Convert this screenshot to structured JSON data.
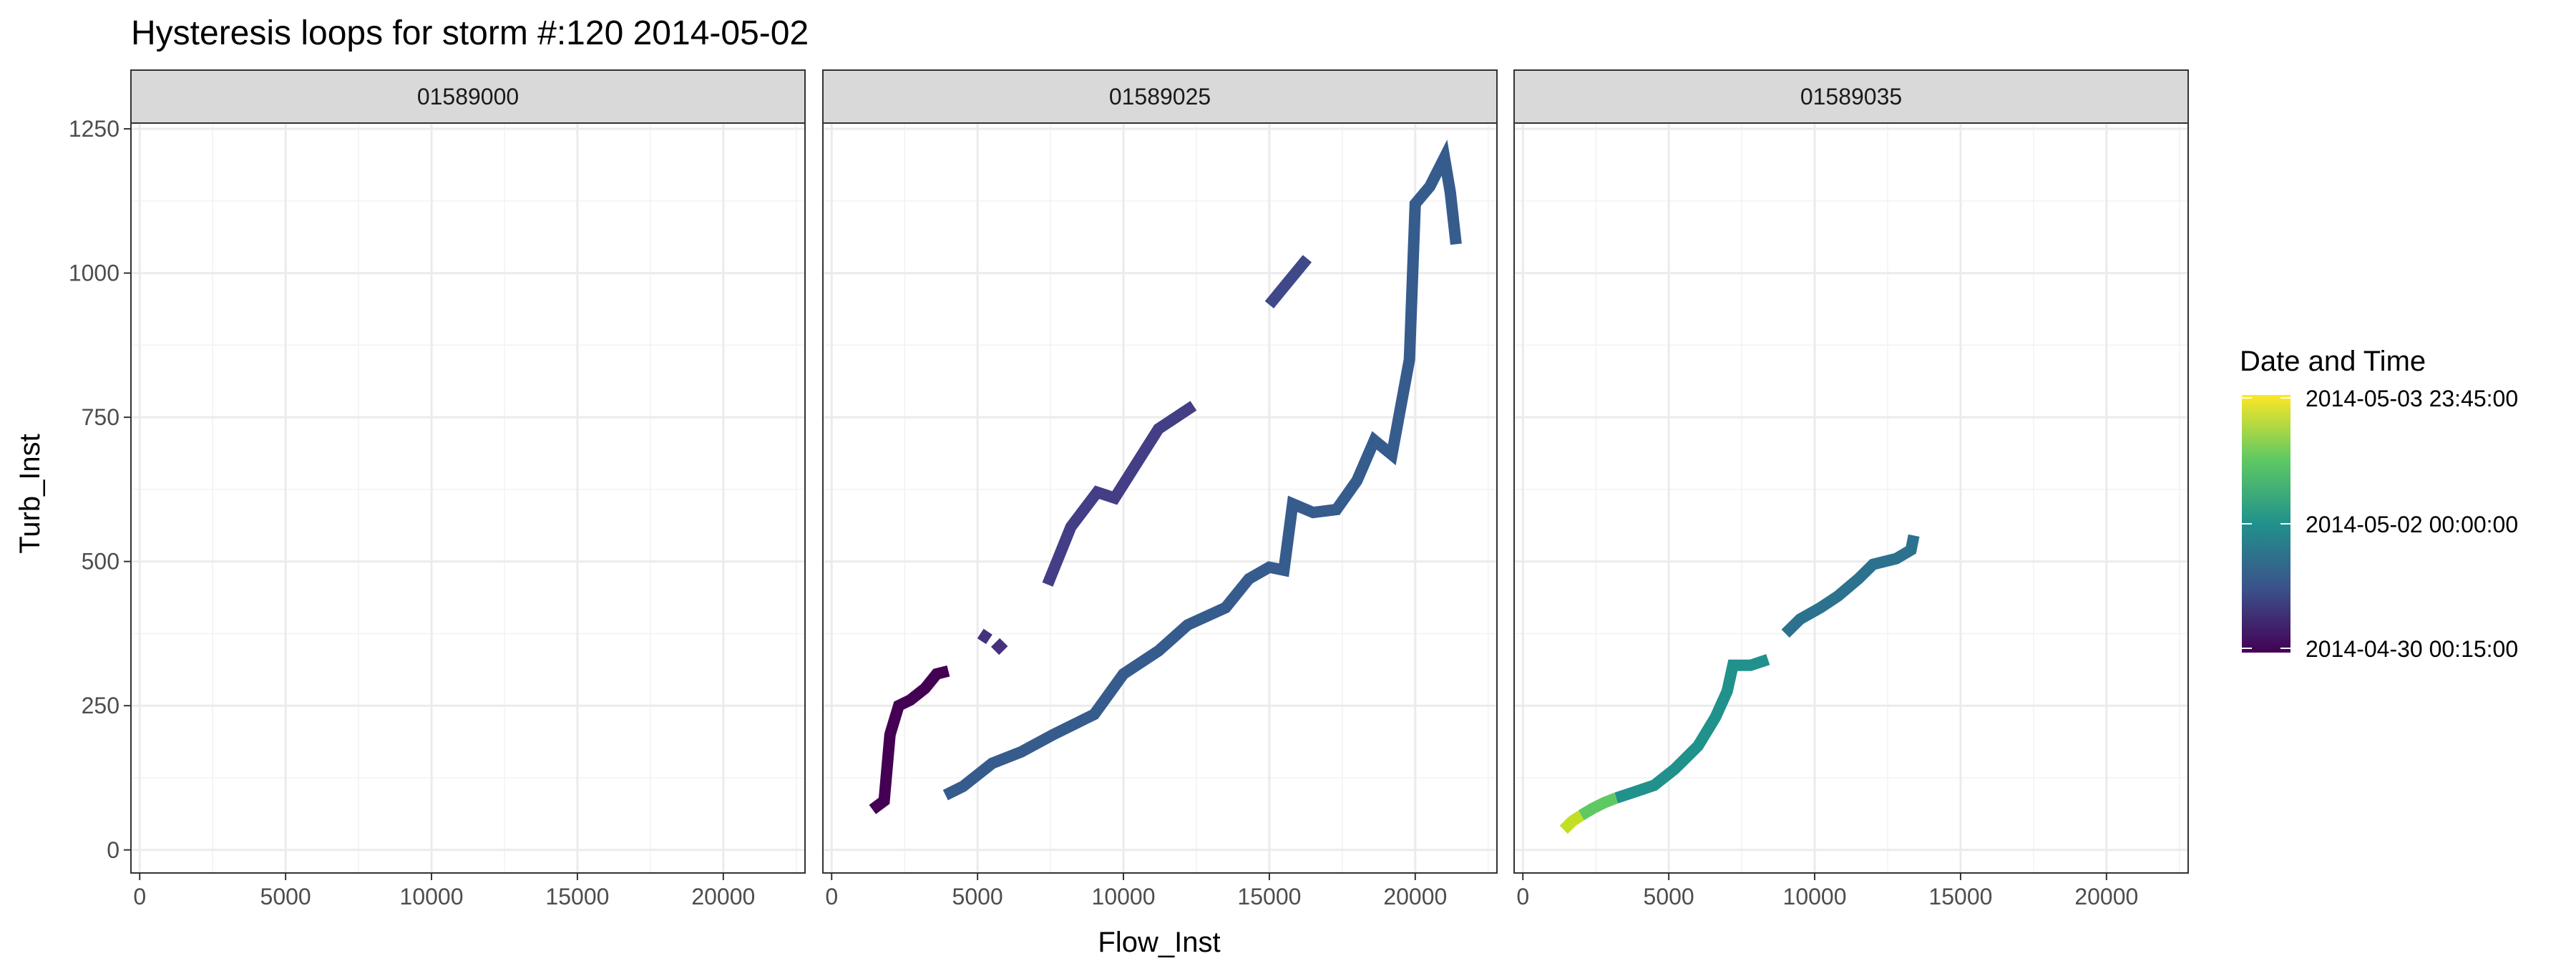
{
  "chart_data": {
    "type": "line",
    "title": "Hysteresis loops for storm #:120   2014-05-02",
    "xlabel": "Flow_Inst",
    "ylabel": "Turb_Inst",
    "xlim": [
      -300,
      22800
    ],
    "ylim": [
      -40,
      1260
    ],
    "x_ticks": [
      0,
      5000,
      10000,
      15000,
      20000
    ],
    "y_ticks": [
      0,
      250,
      500,
      750,
      1000,
      1250
    ],
    "grid": true,
    "legend": {
      "title": "Date and Time",
      "placement": "right",
      "labels": [
        "2014-05-03 23:45:00",
        "2014-05-02 00:00:00",
        "2014-04-30 00:15:00"
      ],
      "colors": [
        "#fde725",
        "#21918c",
        "#440154"
      ]
    },
    "panels": [
      {
        "strip": "01589000",
        "series": []
      },
      {
        "strip": "01589025",
        "series": [
          {
            "color": "#440154",
            "points": [
              [
                1400,
                70
              ],
              [
                1800,
                85
              ],
              [
                2000,
                200
              ],
              [
                2300,
                250
              ],
              [
                2700,
                260
              ],
              [
                3200,
                280
              ],
              [
                3600,
                305
              ],
              [
                4000,
                310
              ]
            ]
          },
          {
            "color": "#46317e",
            "points": [
              [
                5100,
                375
              ],
              [
                5400,
                365
              ]
            ]
          },
          {
            "color": "#46317e",
            "points": [
              [
                5600,
                345
              ],
              [
                5900,
                360
              ]
            ]
          },
          {
            "color": "#433e85",
            "points": [
              [
                7400,
                460
              ],
              [
                8200,
                560
              ],
              [
                9100,
                620
              ],
              [
                9700,
                610
              ],
              [
                11200,
                730
              ],
              [
                12400,
                770
              ]
            ]
          },
          {
            "color": "#3f4889",
            "points": [
              [
                15000,
                945
              ],
              [
                16300,
                1025
              ]
            ]
          },
          {
            "color": "#365c8d",
            "points": [
              [
                3900,
                95
              ],
              [
                4500,
                110
              ],
              [
                5500,
                150
              ],
              [
                6500,
                170
              ],
              [
                7600,
                200
              ],
              [
                9000,
                235
              ],
              [
                10000,
                305
              ],
              [
                11200,
                345
              ],
              [
                12200,
                390
              ],
              [
                13500,
                420
              ],
              [
                14300,
                470
              ],
              [
                15000,
                490
              ],
              [
                15500,
                485
              ],
              [
                15800,
                600
              ],
              [
                16500,
                585
              ],
              [
                17300,
                590
              ],
              [
                18000,
                640
              ],
              [
                18600,
                710
              ],
              [
                19200,
                685
              ],
              [
                19800,
                850
              ],
              [
                20000,
                1120
              ],
              [
                20500,
                1150
              ],
              [
                21000,
                1200
              ],
              [
                21200,
                1140
              ],
              [
                21400,
                1050
              ]
            ]
          }
        ]
      },
      {
        "strip": "01589035",
        "series": [
          {
            "color": "#c2df23",
            "points": [
              [
                1400,
                35
              ],
              [
                1700,
                50
              ],
              [
                2000,
                60
              ]
            ]
          },
          {
            "color": "#5ec962",
            "points": [
              [
                2000,
                60
              ],
              [
                2400,
                72
              ],
              [
                2800,
                82
              ],
              [
                3200,
                90
              ]
            ]
          },
          {
            "color": "#21918c",
            "points": [
              [
                3200,
                90
              ],
              [
                3800,
                100
              ],
              [
                4500,
                112
              ],
              [
                5200,
                140
              ],
              [
                6000,
                180
              ],
              [
                6600,
                230
              ],
              [
                7000,
                275
              ],
              [
                7200,
                320
              ],
              [
                7800,
                320
              ],
              [
                8400,
                330
              ]
            ]
          },
          {
            "color": "#2c728e",
            "points": [
              [
                9000,
                375
              ],
              [
                9500,
                400
              ],
              [
                10200,
                420
              ],
              [
                10800,
                440
              ],
              [
                11500,
                470
              ],
              [
                12000,
                495
              ],
              [
                12800,
                505
              ],
              [
                13300,
                520
              ],
              [
                13400,
                545
              ]
            ]
          }
        ]
      }
    ]
  }
}
